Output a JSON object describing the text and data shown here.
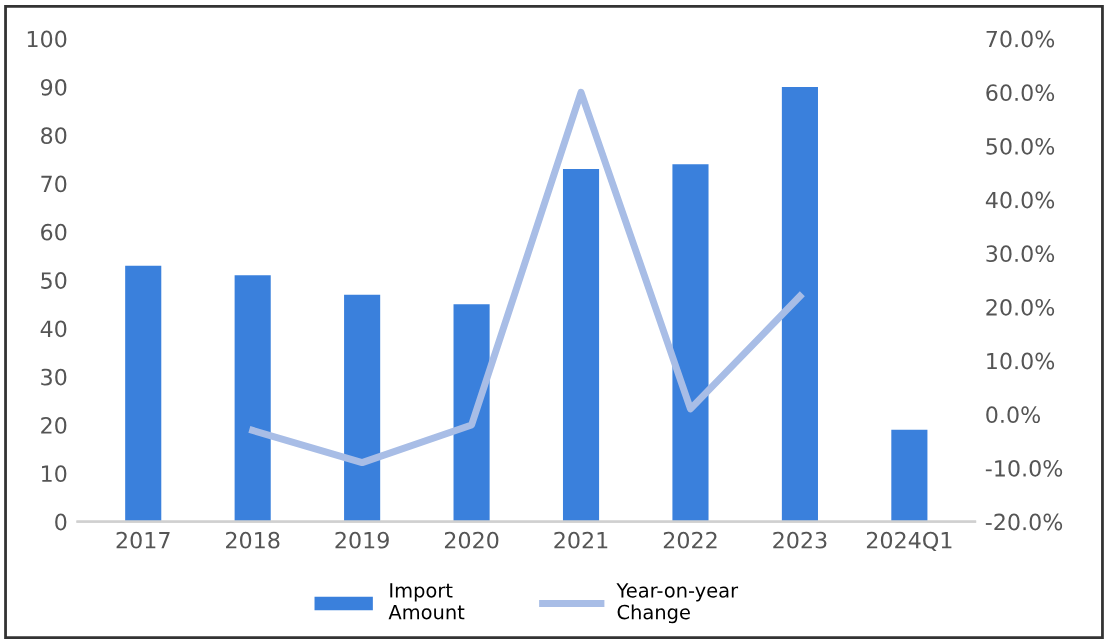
{
  "chart_data": {
    "type": "bar",
    "categories": [
      "2017",
      "2018",
      "2019",
      "2020",
      "2021",
      "2022",
      "2023",
      "2024Q1"
    ],
    "series": [
      {
        "name": "Import\nAmount",
        "color": "#3a80dc",
        "values": [
          53,
          51,
          47,
          45,
          73,
          74,
          90,
          19
        ]
      },
      {
        "name": "Year-on-year\nChange",
        "type": "line",
        "axis": "y2",
        "color": "#a8bde6",
        "values": [
          null,
          -3,
          -9,
          -2,
          60,
          1,
          22,
          null
        ]
      }
    ],
    "ylim": [
      0,
      100
    ],
    "yticks": [
      0,
      10,
      20,
      30,
      40,
      50,
      60,
      70,
      80,
      90,
      100
    ],
    "y2lim": [
      -20,
      70
    ],
    "y2ticks": [
      {
        "value": -20,
        "label": "-20.0%"
      },
      {
        "value": -10,
        "label": "-10.0%"
      },
      {
        "value": 0,
        "label": "0.0%"
      },
      {
        "value": 10,
        "label": "10.0%"
      },
      {
        "value": 20,
        "label": "20.0%"
      },
      {
        "value": 30,
        "label": "30.0%"
      },
      {
        "value": 40,
        "label": "40.0%"
      },
      {
        "value": 50,
        "label": "50.0%"
      },
      {
        "value": 60,
        "label": "60.0%"
      },
      {
        "value": 70,
        "label": "70.0%"
      }
    ],
    "legend": "bottom",
    "grid": false,
    "marker": "none",
    "line_style": "solid"
  }
}
